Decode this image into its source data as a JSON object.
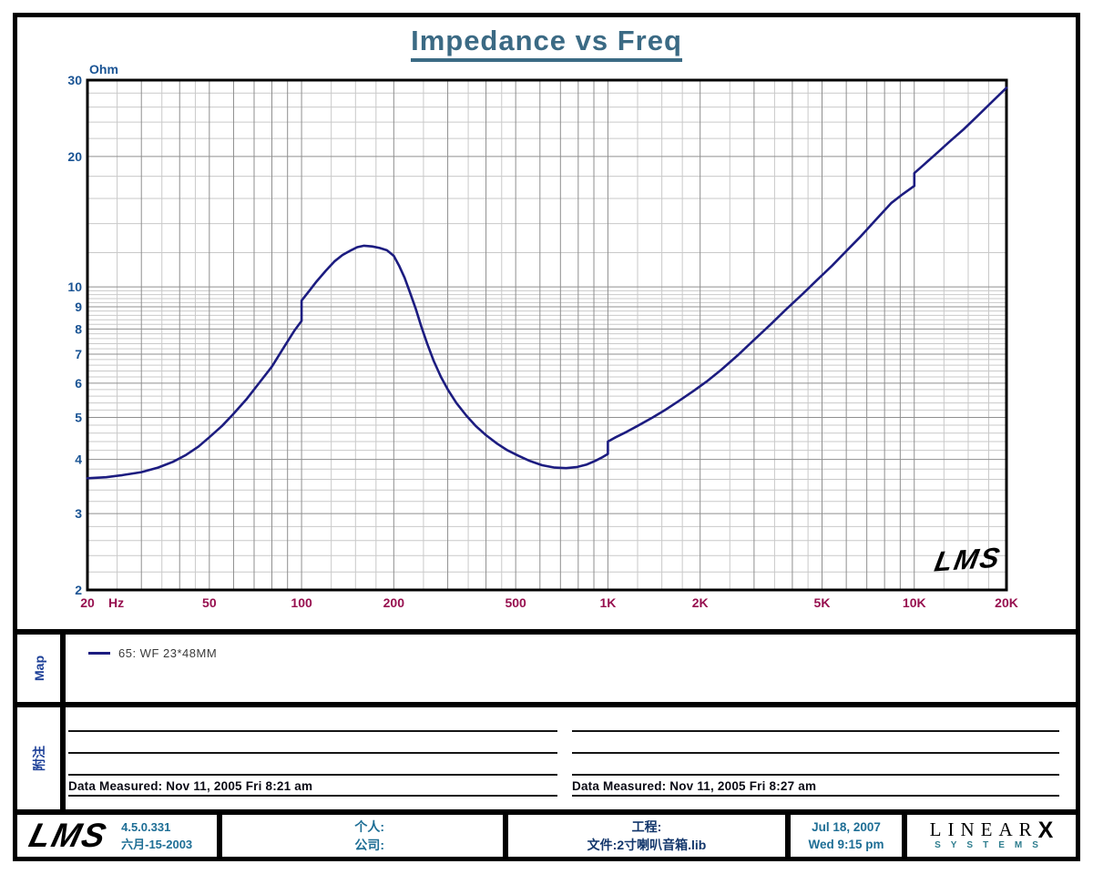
{
  "title": "Impedance vs Freq",
  "watermark": "LMS",
  "chart_data": {
    "type": "line",
    "x_scale": "log",
    "y_scale": "log",
    "x_range": [
      20,
      20000
    ],
    "y_range": [
      2,
      30
    ],
    "ylabel": "Ohm",
    "x_unit": "Hz",
    "x_ticks": [
      {
        "v": 20,
        "label": "20"
      },
      {
        "v": 50,
        "label": "50"
      },
      {
        "v": 100,
        "label": "100"
      },
      {
        "v": 200,
        "label": "200"
      },
      {
        "v": 500,
        "label": "500"
      },
      {
        "v": 1000,
        "label": "1K"
      },
      {
        "v": 2000,
        "label": "2K"
      },
      {
        "v": 5000,
        "label": "5K"
      },
      {
        "v": 10000,
        "label": "10K"
      },
      {
        "v": 20000,
        "label": "20K"
      }
    ],
    "y_ticks": [
      30,
      20,
      10,
      9,
      8,
      7,
      6,
      5,
      4,
      3,
      2
    ],
    "grid": {
      "major_color": "#8f8f8f",
      "minor_color": "#c9c9c9",
      "frame_color": "#000000"
    },
    "axis_colors": {
      "y_labels": "#1A5494",
      "x_labels": "#97104F"
    },
    "series": [
      {
        "name": "65: WF  23*48MM",
        "color": "#1C1C80",
        "points": [
          [
            20,
            3.62
          ],
          [
            23,
            3.64
          ],
          [
            26,
            3.68
          ],
          [
            30,
            3.74
          ],
          [
            34,
            3.83
          ],
          [
            38,
            3.95
          ],
          [
            42,
            4.1
          ],
          [
            46,
            4.28
          ],
          [
            50,
            4.5
          ],
          [
            55,
            4.78
          ],
          [
            60,
            5.1
          ],
          [
            66,
            5.5
          ],
          [
            72,
            5.95
          ],
          [
            80,
            6.55
          ],
          [
            88,
            7.3
          ],
          [
            95,
            7.95
          ],
          [
            100,
            8.35
          ],
          [
            100,
            9.3
          ],
          [
            106,
            9.8
          ],
          [
            112,
            10.3
          ],
          [
            120,
            10.9
          ],
          [
            128,
            11.45
          ],
          [
            136,
            11.85
          ],
          [
            145,
            12.15
          ],
          [
            152,
            12.35
          ],
          [
            160,
            12.45
          ],
          [
            170,
            12.4
          ],
          [
            180,
            12.3
          ],
          [
            190,
            12.15
          ],
          [
            200,
            11.8
          ],
          [
            208,
            11.2
          ],
          [
            217,
            10.5
          ],
          [
            226,
            9.7
          ],
          [
            236,
            8.9
          ],
          [
            246,
            8.1
          ],
          [
            257,
            7.4
          ],
          [
            270,
            6.75
          ],
          [
            285,
            6.2
          ],
          [
            300,
            5.8
          ],
          [
            320,
            5.4
          ],
          [
            345,
            5.05
          ],
          [
            370,
            4.78
          ],
          [
            400,
            4.55
          ],
          [
            435,
            4.35
          ],
          [
            470,
            4.2
          ],
          [
            510,
            4.08
          ],
          [
            555,
            3.97
          ],
          [
            610,
            3.88
          ],
          [
            670,
            3.83
          ],
          [
            730,
            3.82
          ],
          [
            790,
            3.84
          ],
          [
            850,
            3.89
          ],
          [
            910,
            3.97
          ],
          [
            960,
            4.05
          ],
          [
            1000,
            4.12
          ],
          [
            1000,
            4.4
          ],
          [
            1060,
            4.5
          ],
          [
            1150,
            4.63
          ],
          [
            1250,
            4.78
          ],
          [
            1400,
            5.0
          ],
          [
            1550,
            5.22
          ],
          [
            1700,
            5.45
          ],
          [
            1900,
            5.75
          ],
          [
            2100,
            6.05
          ],
          [
            2350,
            6.45
          ],
          [
            2650,
            6.95
          ],
          [
            3000,
            7.55
          ],
          [
            3400,
            8.2
          ],
          [
            3800,
            8.85
          ],
          [
            4300,
            9.6
          ],
          [
            4800,
            10.35
          ],
          [
            5400,
            11.2
          ],
          [
            6000,
            12.1
          ],
          [
            6700,
            13.1
          ],
          [
            7500,
            14.3
          ],
          [
            8400,
            15.6
          ],
          [
            9200,
            16.4
          ],
          [
            10000,
            17.1
          ],
          [
            10000,
            18.3
          ],
          [
            10800,
            19.2
          ],
          [
            11800,
            20.3
          ],
          [
            13000,
            21.6
          ],
          [
            14500,
            23.1
          ],
          [
            16000,
            24.7
          ],
          [
            17800,
            26.6
          ],
          [
            20000,
            28.8
          ]
        ]
      }
    ]
  },
  "map_section": {
    "label": "Map"
  },
  "notes_section": {
    "label": "附注",
    "left_caption": "Data Measured: Nov 11, 2005  Fri  8:21 am",
    "right_caption": "Data Measured: Nov 11, 2005  Fri  8:27 am"
  },
  "footer": {
    "logo": "LMS",
    "version": "4.5.0.331",
    "version_date": "六月-15-2003",
    "personal_label": "个人:",
    "company_label": "公司:",
    "project_label": "工程:",
    "file_label": "文件:2寸喇叭音箱.lib",
    "date": "Jul 18, 2007",
    "time": "Wed  9:15 pm",
    "brand": {
      "line1": "LINEAR",
      "x": "X",
      "line2": "SYSTEMS"
    }
  }
}
